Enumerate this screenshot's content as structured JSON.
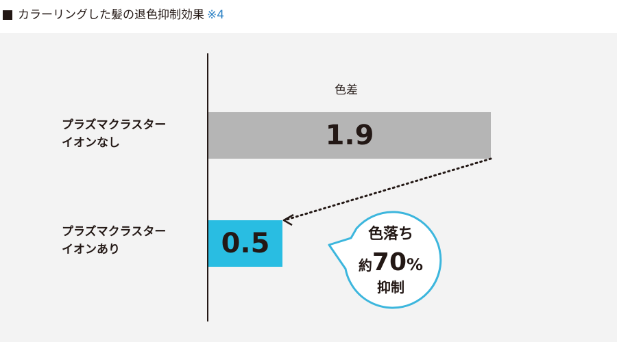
{
  "header": {
    "title": "カラーリングした髪の退色抑制効果",
    "note": "※4"
  },
  "chart_data": {
    "type": "bar",
    "orientation": "horizontal",
    "series_label": "色差",
    "categories": [
      [
        "プラズマクラスター",
        "イオンなし"
      ],
      [
        "プラズマクラスター",
        "イオンあり"
      ]
    ],
    "values": [
      1.9,
      0.5
    ],
    "value_labels": [
      "1.9",
      "0.5"
    ],
    "bar_colors": [
      "#b5b5b5",
      "#29bde2"
    ],
    "xlim": [
      0,
      2.0
    ],
    "grid": false
  },
  "callout": {
    "line1": "色落ち",
    "prefix": "約",
    "number": "70",
    "unit": "%",
    "line3": "抑制",
    "border_color": "#3cb6dd"
  }
}
